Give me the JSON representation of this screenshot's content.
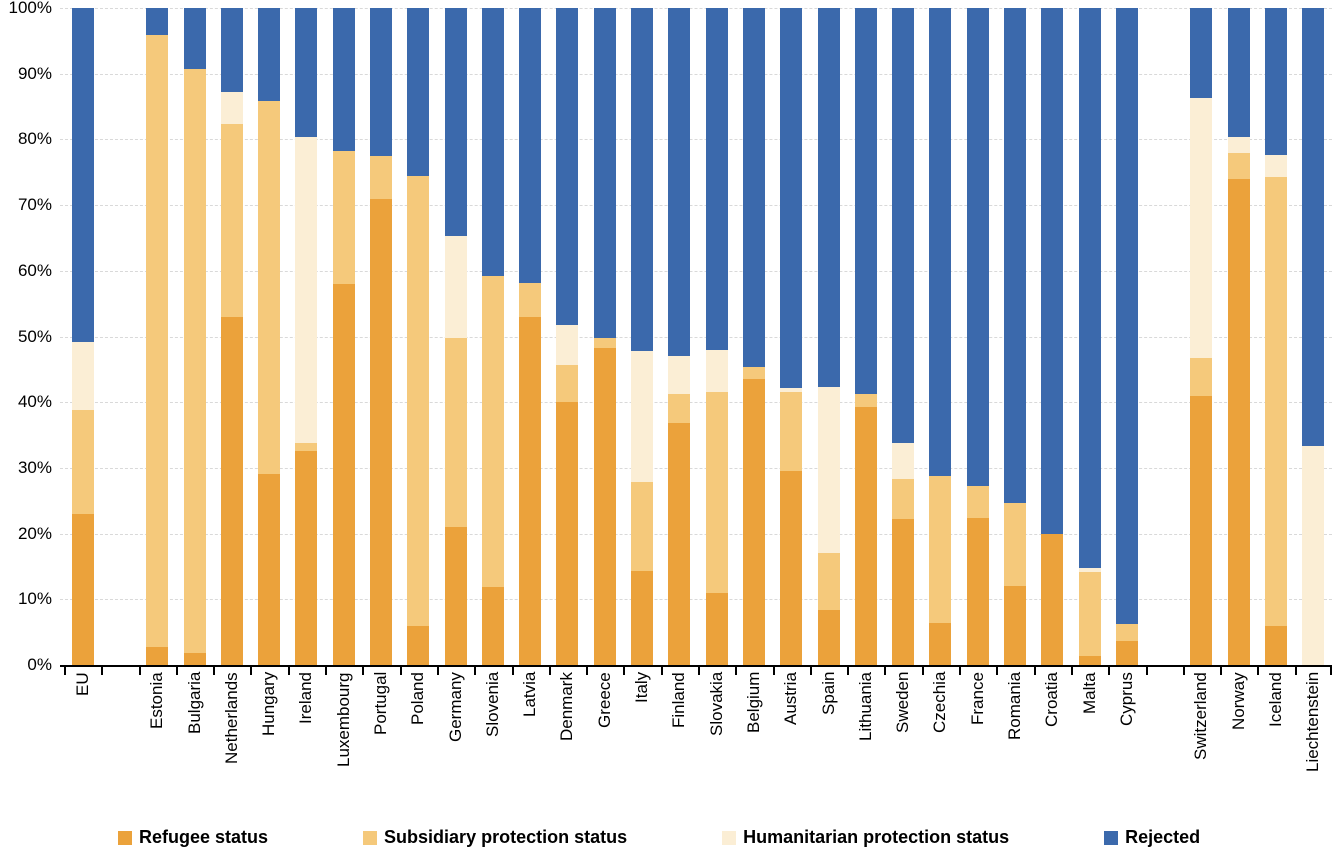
{
  "chart_data": {
    "type": "bar",
    "subtype": "stacked-100-percent",
    "title": "",
    "xlabel": "",
    "ylabel": "",
    "ylim": [
      0,
      100
    ],
    "grid": "horizontal-dashed-every-10pct",
    "legend_position": "bottom",
    "y_ticks": [
      "0%",
      "10%",
      "20%",
      "30%",
      "40%",
      "50%",
      "60%",
      "70%",
      "80%",
      "90%",
      "100%"
    ],
    "series": [
      {
        "name": "Refugee status",
        "color": "#EBA23B"
      },
      {
        "name": "Subsidiary protection status",
        "color": "#F5C97B"
      },
      {
        "name": "Humanitarian protection status",
        "color": "#FBEED5"
      },
      {
        "name": "Rejected",
        "color": "#3B69AC"
      }
    ],
    "axis_color": "#000000",
    "gridline_color": "#D9D9D9",
    "bars": [
      {
        "label": "EU",
        "values": [
          23.0,
          15.8,
          10.4,
          50.8
        ]
      },
      {
        "label": "",
        "values": null
      },
      {
        "label": "Estonia",
        "values": [
          2.7,
          93.2,
          0.0,
          4.1
        ]
      },
      {
        "label": "Bulgaria",
        "values": [
          1.8,
          88.9,
          0.0,
          9.3
        ]
      },
      {
        "label": "Netherlands",
        "values": [
          53.0,
          29.3,
          4.9,
          12.8
        ]
      },
      {
        "label": "Hungary",
        "values": [
          29.0,
          56.8,
          0.0,
          14.2
        ]
      },
      {
        "label": "Ireland",
        "values": [
          32.5,
          1.3,
          46.5,
          19.7
        ]
      },
      {
        "label": "Luxembourg",
        "values": [
          58.0,
          20.2,
          0.0,
          21.8
        ]
      },
      {
        "label": "Portugal",
        "values": [
          71.0,
          6.5,
          0.0,
          22.5
        ]
      },
      {
        "label": "Poland",
        "values": [
          6.0,
          68.5,
          0.0,
          25.5
        ]
      },
      {
        "label": "Germany",
        "values": [
          21.0,
          28.8,
          15.5,
          34.7
        ]
      },
      {
        "label": "Slovenia",
        "values": [
          11.8,
          47.4,
          0.0,
          40.8
        ]
      },
      {
        "label": "Latvia",
        "values": [
          53.0,
          5.1,
          0.0,
          41.9
        ]
      },
      {
        "label": "Denmark",
        "values": [
          40.0,
          5.7,
          6.1,
          48.2
        ]
      },
      {
        "label": "Greece",
        "values": [
          48.3,
          1.5,
          0.0,
          50.2
        ]
      },
      {
        "label": "Italy",
        "values": [
          14.3,
          13.5,
          20.0,
          52.2
        ]
      },
      {
        "label": "Finland",
        "values": [
          36.8,
          4.4,
          5.8,
          53.0
        ]
      },
      {
        "label": "Slovakia",
        "values": [
          11.0,
          30.5,
          6.5,
          52.0
        ]
      },
      {
        "label": "Belgium",
        "values": [
          43.5,
          1.8,
          0.0,
          54.7
        ]
      },
      {
        "label": "Austria",
        "values": [
          29.5,
          12.1,
          0.6,
          57.8
        ]
      },
      {
        "label": "Spain",
        "values": [
          8.3,
          8.7,
          25.3,
          57.7
        ]
      },
      {
        "label": "Lithuania",
        "values": [
          39.3,
          1.9,
          0.0,
          58.8
        ]
      },
      {
        "label": "Sweden",
        "values": [
          22.3,
          6.0,
          5.5,
          66.2
        ]
      },
      {
        "label": "Czechia",
        "values": [
          6.4,
          22.4,
          0.0,
          71.2
        ]
      },
      {
        "label": "France",
        "values": [
          22.4,
          4.8,
          0.0,
          72.8
        ]
      },
      {
        "label": "Romania",
        "values": [
          12.0,
          12.7,
          0.0,
          75.3
        ]
      },
      {
        "label": "Croatia",
        "values": [
          20.0,
          0.0,
          0.0,
          80.0
        ]
      },
      {
        "label": "Malta",
        "values": [
          1.4,
          12.7,
          0.7,
          85.2
        ]
      },
      {
        "label": "Cyprus",
        "values": [
          3.6,
          2.6,
          0.0,
          93.8
        ]
      },
      {
        "label": "",
        "values": null
      },
      {
        "label": "Switzerland",
        "values": [
          41.0,
          5.7,
          39.6,
          13.7
        ]
      },
      {
        "label": "Norway",
        "values": [
          74.0,
          4.0,
          2.4,
          19.6
        ]
      },
      {
        "label": "Iceland",
        "values": [
          6.0,
          68.3,
          3.3,
          22.4
        ]
      },
      {
        "label": "Liechtenstein",
        "values": [
          0.0,
          0.0,
          33.4,
          66.6
        ]
      }
    ]
  }
}
